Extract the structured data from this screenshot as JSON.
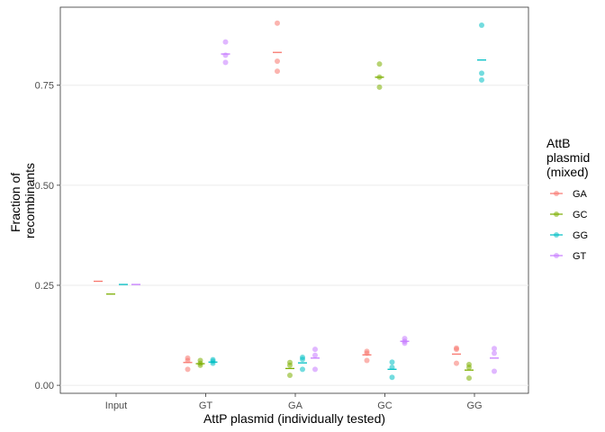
{
  "chart_data": {
    "type": "scatter",
    "xlabel": "AttP plasmid (individually tested)",
    "ylabel_lines": [
      "Fraction of",
      "recombinants"
    ],
    "categories": [
      "Input",
      "GT",
      "GA",
      "GC",
      "GG"
    ],
    "ylim": [
      -0.02,
      0.945
    ],
    "y_ticks": [
      0.0,
      0.25,
      0.5,
      0.75
    ],
    "y_tick_labels": [
      "0.00",
      "0.25",
      "0.50",
      "0.75"
    ],
    "grid": true,
    "legend": {
      "position": "right",
      "title_lines": [
        "AttB",
        "plasmid",
        "(mixed)"
      ]
    },
    "series": [
      {
        "name": "GA",
        "color": "#F8766D",
        "points": {
          "Input": [],
          "GT": [
            0.04,
            0.062,
            0.068
          ],
          "GA": [
            0.785,
            0.81,
            0.905
          ],
          "GC": [
            0.062,
            0.08,
            0.085
          ],
          "GG": [
            0.055,
            0.09,
            0.093
          ]
        },
        "means": {
          "Input": 0.26,
          "GT": 0.057,
          "GA": 0.832,
          "GC": 0.076,
          "GG": 0.078
        }
      },
      {
        "name": "GC",
        "color": "#7CAE00",
        "points": {
          "Input": [],
          "GT": [
            0.05,
            0.055,
            0.062
          ],
          "GA": [
            0.025,
            0.05,
            0.057
          ],
          "GC": [
            0.745,
            0.77,
            0.803
          ],
          "GG": [
            0.018,
            0.045,
            0.052
          ]
        },
        "means": {
          "Input": 0.228,
          "GT": 0.054,
          "GA": 0.042,
          "GC": 0.77,
          "GG": 0.038
        }
      },
      {
        "name": "GG",
        "color": "#00BFC4",
        "points": {
          "Input": [],
          "GT": [
            0.055,
            0.06,
            0.064
          ],
          "GA": [
            0.04,
            0.065,
            0.07
          ],
          "GC": [
            0.02,
            0.045,
            0.058
          ],
          "GG": [
            0.763,
            0.78,
            0.9
          ]
        },
        "means": {
          "Input": 0.252,
          "GT": 0.058,
          "GA": 0.056,
          "GC": 0.04,
          "GG": 0.813
        }
      },
      {
        "name": "GT",
        "color": "#C77CFF",
        "points": {
          "Input": [],
          "GT": [
            0.807,
            0.825,
            0.858
          ],
          "GA": [
            0.04,
            0.075,
            0.09
          ],
          "GC": [
            0.105,
            0.11,
            0.117
          ],
          "GG": [
            0.035,
            0.08,
            0.092
          ]
        },
        "means": {
          "Input": 0.252,
          "GT": 0.828,
          "GA": 0.068,
          "GC": 0.11,
          "GG": 0.068
        }
      }
    ]
  }
}
